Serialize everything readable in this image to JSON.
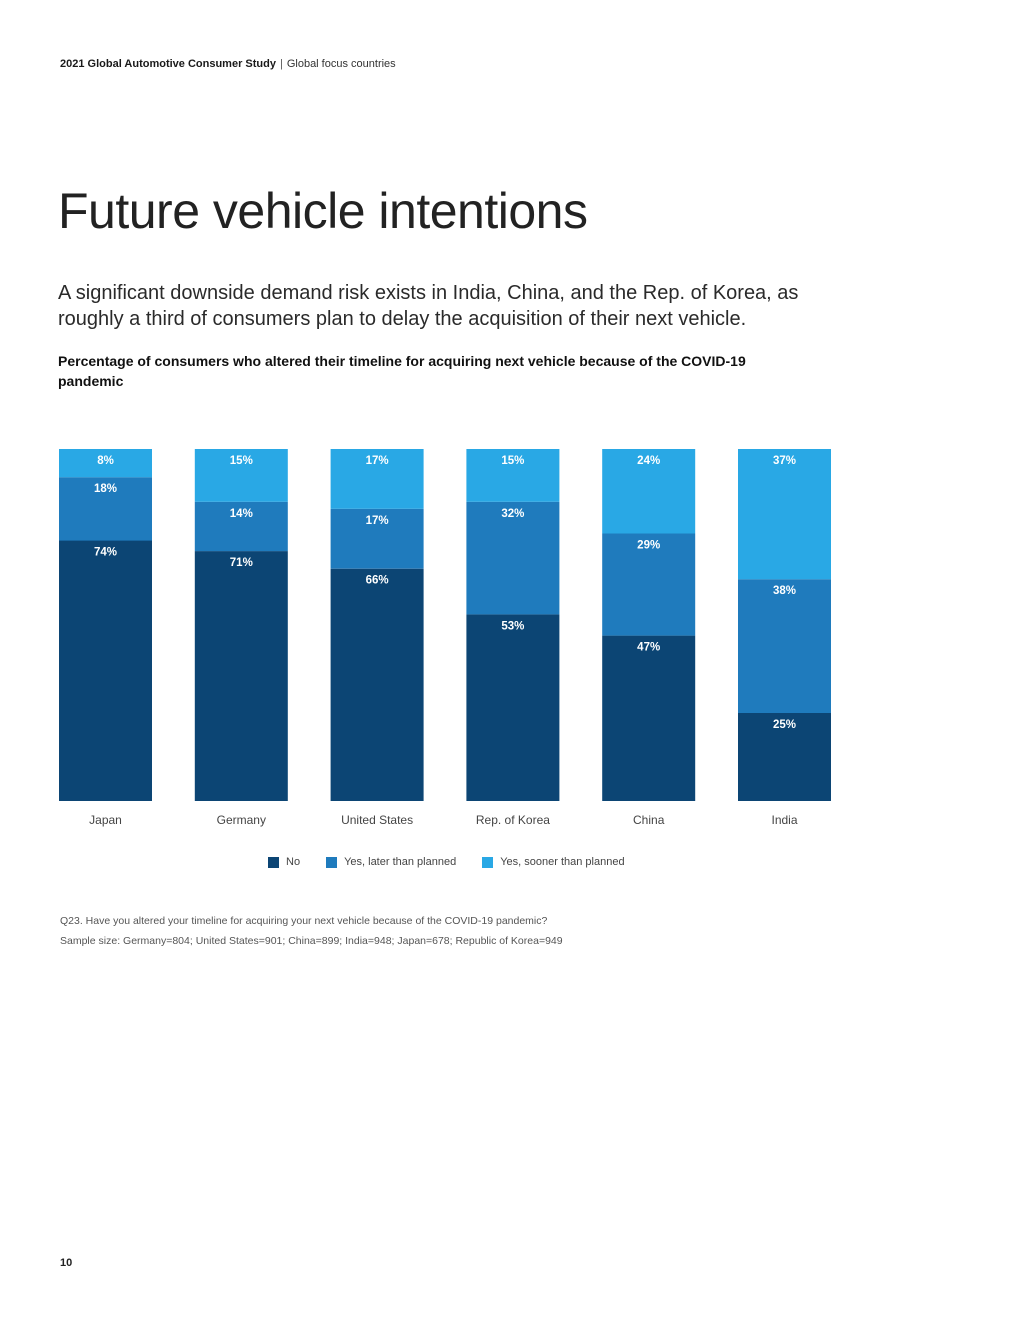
{
  "header": {
    "study": "2021 Global Automotive Consumer Study",
    "separator": "|",
    "section": "Global focus countries"
  },
  "page_title": "Future vehicle intentions",
  "subtitle": "A significant downside demand risk exists in India, China, and the Rep. of Korea, as roughly a third of consumers plan to delay the acquisition of their next vehicle.",
  "notes": {
    "question": "Q23. Have you altered your timeline for acquiring your next vehicle because of the COVID-19 pandemic?",
    "sample": "Sample size: Germany=804; United States=901; China=899; India=948; Japan=678; Republic of Korea=949"
  },
  "page_number": "10",
  "colors": {
    "no": "#0c4574",
    "later": "#1f7bbd",
    "sooner": "#29a8e5"
  },
  "chart_data": {
    "type": "bar",
    "stacked": true,
    "title": "Percentage of consumers who altered their timeline for acquiring next vehicle because of the COVID-19 pandemic",
    "categories": [
      "Japan",
      "Germany",
      "United States",
      "Rep. of Korea",
      "China",
      "India"
    ],
    "series": [
      {
        "name": "No",
        "values": [
          74,
          71,
          66,
          53,
          47,
          25
        ],
        "color": "#0c4574"
      },
      {
        "name": "Yes, later than planned",
        "values": [
          18,
          14,
          17,
          32,
          29,
          38
        ],
        "color": "#1f7bbd"
      },
      {
        "name": "Yes, sooner than planned",
        "values": [
          8,
          15,
          17,
          15,
          24,
          37
        ],
        "color": "#29a8e5"
      }
    ],
    "value_suffix": "%",
    "legend_position": "bottom",
    "grid": false
  }
}
